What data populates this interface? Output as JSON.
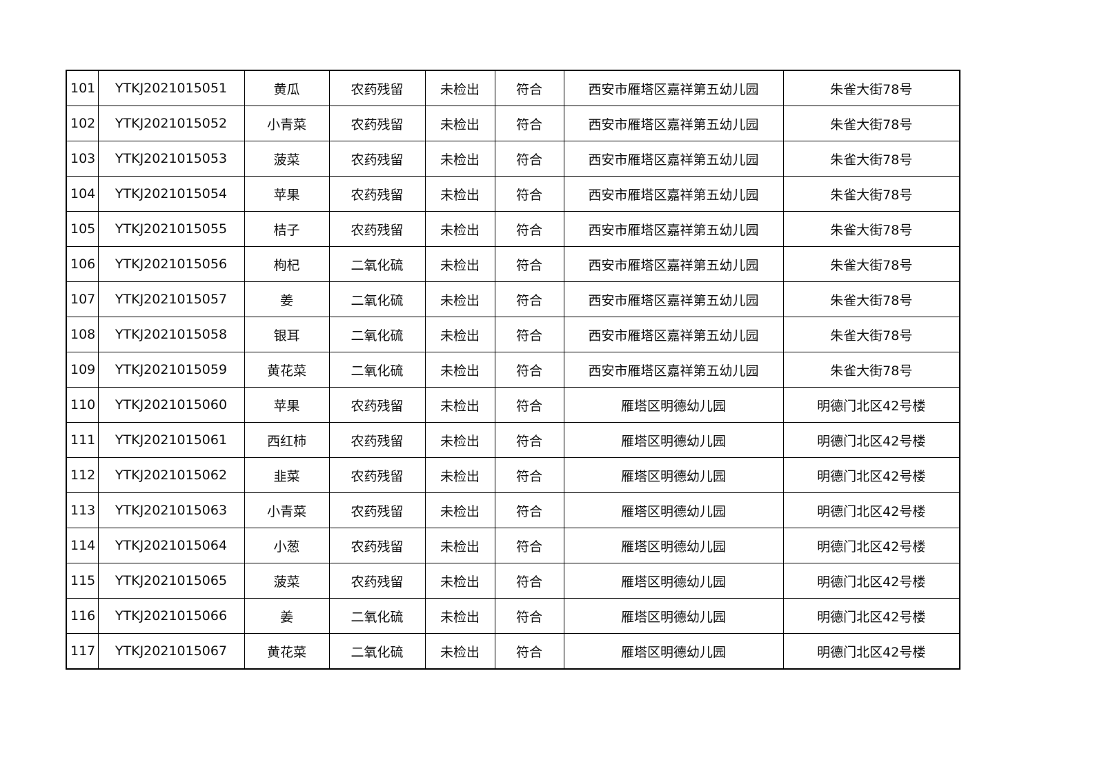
{
  "rows": [
    [
      "101",
      "YTKJ2021015051",
      "黄瓜",
      "农药残留",
      "未检出",
      "符合",
      "西安市雁塔区嘉祥第五幼儿园",
      "朱雀大街78号"
    ],
    [
      "102",
      "YTKJ2021015052",
      "小青菜",
      "农药残留",
      "未检出",
      "符合",
      "西安市雁塔区嘉祥第五幼儿园",
      "朱雀大街78号"
    ],
    [
      "103",
      "YTKJ2021015053",
      "菠菜",
      "农药残留",
      "未检出",
      "符合",
      "西安市雁塔区嘉祥第五幼儿园",
      "朱雀大街78号"
    ],
    [
      "104",
      "YTKJ2021015054",
      "苹果",
      "农药残留",
      "未检出",
      "符合",
      "西安市雁塔区嘉祥第五幼儿园",
      "朱雀大街78号"
    ],
    [
      "105",
      "YTKJ2021015055",
      "桔子",
      "农药残留",
      "未检出",
      "符合",
      "西安市雁塔区嘉祥第五幼儿园",
      "朱雀大街78号"
    ],
    [
      "106",
      "YTKJ2021015056",
      "枸杞",
      "二氧化硫",
      "未检出",
      "符合",
      "西安市雁塔区嘉祥第五幼儿园",
      "朱雀大街78号"
    ],
    [
      "107",
      "YTKJ2021015057",
      "姜",
      "二氧化硫",
      "未检出",
      "符合",
      "西安市雁塔区嘉祥第五幼儿园",
      "朱雀大街78号"
    ],
    [
      "108",
      "YTKJ2021015058",
      "银耳",
      "二氧化硫",
      "未检出",
      "符合",
      "西安市雁塔区嘉祥第五幼儿园",
      "朱雀大街78号"
    ],
    [
      "109",
      "YTKJ2021015059",
      "黄花菜",
      "二氧化硫",
      "未检出",
      "符合",
      "西安市雁塔区嘉祥第五幼儿园",
      "朱雀大街78号"
    ],
    [
      "110",
      "YTKJ2021015060",
      "苹果",
      "农药残留",
      "未检出",
      "符合",
      "雁塔区明德幼儿园",
      "明德门北区42号楼"
    ],
    [
      "111",
      "YTKJ2021015061",
      "西红柿",
      "农药残留",
      "未检出",
      "符合",
      "雁塔区明德幼儿园",
      "明德门北区42号楼"
    ],
    [
      "112",
      "YTKJ2021015062",
      "韭菜",
      "农药残留",
      "未检出",
      "符合",
      "雁塔区明德幼儿园",
      "明德门北区42号楼"
    ],
    [
      "113",
      "YTKJ2021015063",
      "小青菜",
      "农药残留",
      "未检出",
      "符合",
      "雁塔区明德幼儿园",
      "明德门北区42号楼"
    ],
    [
      "114",
      "YTKJ2021015064",
      "小葱",
      "农药残留",
      "未检出",
      "符合",
      "雁塔区明德幼儿园",
      "明德门北区42号楼"
    ],
    [
      "115",
      "YTKJ2021015065",
      "菠菜",
      "农药残留",
      "未检出",
      "符合",
      "雁塔区明德幼儿园",
      "明德门北区42号楼"
    ],
    [
      "116",
      "YTKJ2021015066",
      "姜",
      "二氧化硫",
      "未检出",
      "符合",
      "雁塔区明德幼儿园",
      "明德门北区42号楼"
    ],
    [
      "117",
      "YTKJ2021015067",
      "黄花菜",
      "二氧化硫",
      "未检出",
      "符合",
      "雁塔区明德幼儿园",
      "明德门北区42号楼"
    ]
  ]
}
